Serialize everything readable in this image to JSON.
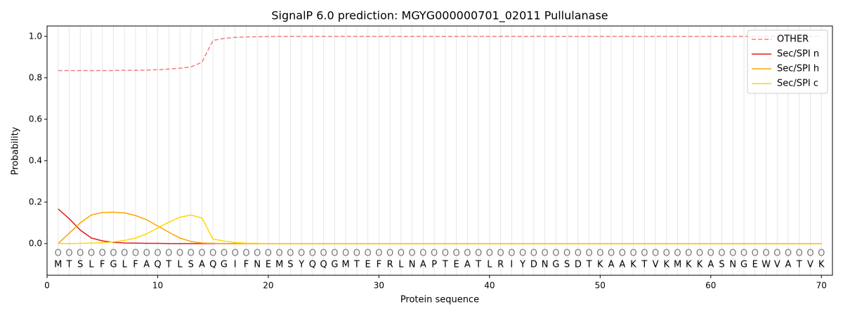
{
  "chart_data": {
    "type": "line",
    "title": "SignalP 6.0 prediction: MGYG000000701_02011 Pullulanase",
    "xlabel": "Protein sequence",
    "ylabel": "Probability",
    "x": [
      1,
      2,
      3,
      4,
      5,
      6,
      7,
      8,
      9,
      10,
      11,
      12,
      13,
      14,
      15,
      16,
      17,
      18,
      19,
      20,
      21,
      22,
      23,
      24,
      25,
      26,
      27,
      28,
      29,
      30,
      31,
      32,
      33,
      34,
      35,
      36,
      37,
      38,
      39,
      40,
      41,
      42,
      43,
      44,
      45,
      46,
      47,
      48,
      49,
      50,
      51,
      52,
      53,
      54,
      55,
      56,
      57,
      58,
      59,
      60,
      61,
      62,
      63,
      64,
      65,
      66,
      67,
      68,
      69,
      70
    ],
    "residues": [
      "M",
      "T",
      "S",
      "L",
      "F",
      "G",
      "L",
      "F",
      "A",
      "Q",
      "T",
      "L",
      "S",
      "A",
      "Q",
      "G",
      "I",
      "F",
      "N",
      "E",
      "M",
      "S",
      "Y",
      "Q",
      "Q",
      "G",
      "M",
      "T",
      "E",
      "F",
      "R",
      "L",
      "N",
      "A",
      "P",
      "T",
      "E",
      "A",
      "T",
      "L",
      "R",
      "I",
      "Y",
      "D",
      "N",
      "G",
      "S",
      "D",
      "T",
      "K",
      "A",
      "A",
      "K",
      "T",
      "V",
      "K",
      "M",
      "K",
      "K",
      "A",
      "S",
      "N",
      "G",
      "E",
      "W",
      "V",
      "A",
      "T",
      "V",
      "K"
    ],
    "labels": [
      "O",
      "O",
      "O",
      "O",
      "O",
      "O",
      "O",
      "O",
      "O",
      "O",
      "O",
      "O",
      "O",
      "O",
      "O",
      "O",
      "O",
      "O",
      "O",
      "O",
      "O",
      "O",
      "O",
      "O",
      "O",
      "O",
      "O",
      "O",
      "O",
      "O",
      "O",
      "O",
      "O",
      "O",
      "O",
      "O",
      "O",
      "O",
      "O",
      "O",
      "O",
      "O",
      "O",
      "O",
      "O",
      "O",
      "O",
      "O",
      "O",
      "O",
      "O",
      "O",
      "O",
      "O",
      "O",
      "O",
      "O",
      "O",
      "O",
      "O",
      "O",
      "O",
      "O",
      "O",
      "O",
      "O",
      "O",
      "O",
      "O",
      "O"
    ],
    "series": [
      {
        "name": "OTHER",
        "color": "#f08080",
        "linestyle": "dashed",
        "values": [
          0.835,
          0.835,
          0.835,
          0.835,
          0.835,
          0.835,
          0.836,
          0.836,
          0.837,
          0.839,
          0.842,
          0.846,
          0.852,
          0.875,
          0.98,
          0.99,
          0.995,
          0.997,
          0.998,
          0.999,
          1,
          1,
          1,
          1,
          1,
          1,
          1,
          1,
          1,
          1,
          1,
          1,
          1,
          1,
          1,
          1,
          1,
          1,
          1,
          1,
          1,
          1,
          1,
          1,
          1,
          1,
          1,
          1,
          1,
          1,
          1,
          1,
          1,
          1,
          1,
          1,
          1,
          1,
          1,
          1,
          1,
          1,
          1,
          1,
          1,
          1,
          1,
          1,
          1,
          1
        ]
      },
      {
        "name": "Sec/SPI n",
        "color": "#e41a1c",
        "linestyle": "solid",
        "values": [
          0.167,
          0.12,
          0.065,
          0.027,
          0.013,
          0.006,
          0.003,
          0.002,
          0.001,
          0.001,
          0,
          0,
          0,
          0,
          0,
          0,
          0,
          0,
          0,
          0,
          0,
          0,
          0,
          0,
          0,
          0,
          0,
          0,
          0,
          0,
          0,
          0,
          0,
          0,
          0,
          0,
          0,
          0,
          0,
          0,
          0,
          0,
          0,
          0,
          0,
          0,
          0,
          0,
          0,
          0,
          0,
          0,
          0,
          0,
          0,
          0,
          0,
          0,
          0,
          0,
          0,
          0,
          0,
          0,
          0,
          0,
          0,
          0,
          0,
          0
        ]
      },
      {
        "name": "Sec/SPI h",
        "color": "#ffa500",
        "linestyle": "solid",
        "values": [
          0,
          0.05,
          0.1,
          0.138,
          0.15,
          0.151,
          0.148,
          0.135,
          0.115,
          0.085,
          0.055,
          0.027,
          0.01,
          0.003,
          0.001,
          0,
          0,
          0,
          0,
          0,
          0,
          0,
          0,
          0,
          0,
          0,
          0,
          0,
          0,
          0,
          0,
          0,
          0,
          0,
          0,
          0,
          0,
          0,
          0,
          0,
          0,
          0,
          0,
          0,
          0,
          0,
          0,
          0,
          0,
          0,
          0,
          0,
          0,
          0,
          0,
          0,
          0,
          0,
          0,
          0,
          0,
          0,
          0,
          0,
          0,
          0,
          0,
          0,
          0,
          0
        ]
      },
      {
        "name": "Sec/SPI c",
        "color": "#ffd700",
        "linestyle": "solid",
        "values": [
          0,
          0,
          0.001,
          0.002,
          0.004,
          0.008,
          0.015,
          0.027,
          0.047,
          0.075,
          0.103,
          0.127,
          0.138,
          0.123,
          0.022,
          0.012,
          0.005,
          0.002,
          0.001,
          0,
          0,
          0,
          0,
          0,
          0,
          0,
          0,
          0,
          0,
          0,
          0,
          0,
          0,
          0,
          0,
          0,
          0,
          0,
          0,
          0,
          0,
          0,
          0,
          0,
          0,
          0,
          0,
          0,
          0,
          0,
          0,
          0,
          0,
          0,
          0,
          0,
          0,
          0,
          0,
          0,
          0,
          0,
          0,
          0,
          0,
          0,
          0,
          0,
          0,
          0
        ]
      }
    ],
    "xlim": [
      0,
      71
    ],
    "ylim": [
      -0.153,
      1.05
    ],
    "xticks": [
      0,
      10,
      20,
      30,
      40,
      50,
      60,
      70
    ],
    "yticks": [
      {
        "value": 0,
        "label": "0.0"
      },
      0.2,
      0.4,
      0.6,
      0.8,
      {
        "value": 1,
        "label": "1.0"
      }
    ],
    "grid": true,
    "legend": "upper right"
  }
}
